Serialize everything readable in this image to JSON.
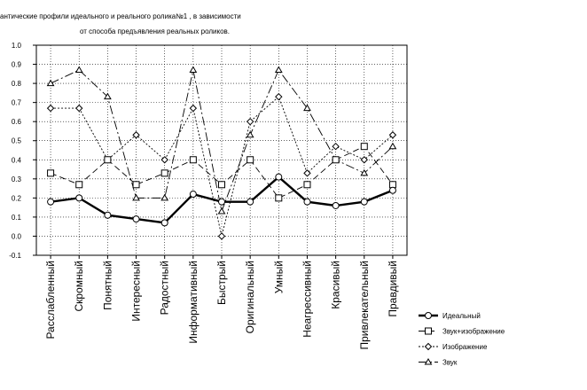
{
  "chart_data": {
    "type": "line",
    "title_line1": "антические профили идеального и реального ролика№1 , в зависимости",
    "title_line2": "от способа предъявления реальных роликов.",
    "categories": [
      "Расслабленный",
      "Скромный",
      "Понятный",
      "Интересный",
      "Радостный",
      "Информативный",
      "Быстрый",
      "Оригинальный",
      "Умный",
      "Неагрессивный",
      "Красивый",
      "Привлекательный",
      "Правдивый"
    ],
    "ylim": [
      -0.1,
      1.0
    ],
    "yticks": [
      "1.0",
      "0.9",
      "0.8",
      "0.7",
      "0.6",
      "0.5",
      "0.4",
      "0.3",
      "0.2",
      "0.1",
      "0.0",
      "-0.1"
    ],
    "grid": true,
    "legend_position": "bottom-right",
    "series": [
      {
        "name": "Идеальный",
        "marker": "circle",
        "style": "solid-thick",
        "values": [
          0.18,
          0.2,
          0.11,
          0.09,
          0.07,
          0.22,
          0.18,
          0.18,
          0.31,
          0.18,
          0.16,
          0.18,
          0.24
        ]
      },
      {
        "name": "Звук+изображение",
        "marker": "square",
        "style": "long-dash",
        "values": [
          0.33,
          0.27,
          0.4,
          0.27,
          0.33,
          0.4,
          0.27,
          0.4,
          0.2,
          0.27,
          0.4,
          0.47,
          0.27
        ]
      },
      {
        "name": "Изображение",
        "marker": "diamond",
        "style": "short-dash",
        "values": [
          0.67,
          0.67,
          0.4,
          0.53,
          0.4,
          0.67,
          0.0,
          0.6,
          0.73,
          0.33,
          0.47,
          0.4,
          0.53
        ]
      },
      {
        "name": "Звук",
        "marker": "triangle",
        "style": "dash-dot",
        "values": [
          0.8,
          0.87,
          0.73,
          0.2,
          0.2,
          0.87,
          0.13,
          0.53,
          0.87,
          0.67,
          0.4,
          0.33,
          0.47
        ]
      }
    ]
  }
}
